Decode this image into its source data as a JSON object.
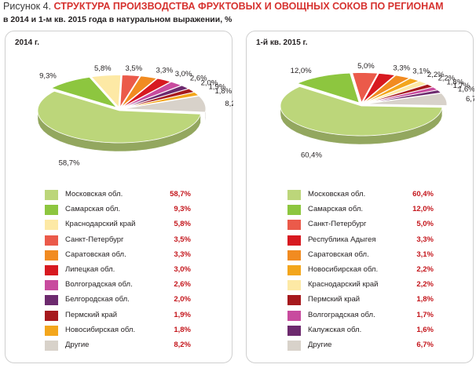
{
  "figure": {
    "lead": "Рисунок 4.",
    "title": "СТРУКТУРА ПРОИЗВОДСТВА ФРУКТОВЫХ И ОВОЩНЫХ СОКОВ ПО РЕГИОНАМ",
    "subtitle": "в 2014 и 1-м кв. 2015 года в натуральном выражении, %"
  },
  "chart_data": [
    {
      "type": "pie",
      "title": "2014 г.",
      "labels": [
        "Московская обл.",
        "Самарская обл.",
        "Краснодарский край",
        "Санкт-Петербург",
        "Саратовская обл.",
        "Липецкая обл.",
        "Волгоградская обл.",
        "Белгородская обл.",
        "Пермский край",
        "Новосибирская обл.",
        "Другие"
      ],
      "values": [
        58.7,
        9.3,
        5.8,
        3.5,
        3.3,
        3.0,
        2.6,
        2.0,
        1.9,
        1.8,
        8.2
      ],
      "value_labels": [
        "58,7%",
        "9,3%",
        "5,8%",
        "3,5%",
        "3,3%",
        "3,0%",
        "2,6%",
        "2,0%",
        "1,9%",
        "1,8%",
        "8,2%"
      ],
      "colors": [
        "#bcd67a",
        "#8dc63f",
        "#fde9a5",
        "#eb5a4a",
        "#f18b21",
        "#d71920",
        "#c84b9e",
        "#6d2a6e",
        "#a6191d",
        "#f3a61c",
        "#d8d2ca"
      ],
      "legend_position": "bottom"
    },
    {
      "type": "pie",
      "title": "1-й кв. 2015 г.",
      "labels": [
        "Московская обл.",
        "Самарская обл.",
        "Санкт-Петербург",
        "Республика Адыгея",
        "Саратовская обл.",
        "Новосибирская обл.",
        "Краснодарский край",
        "Пермский край",
        "Волгоградская обл.",
        "Калужская обл.",
        "Другие"
      ],
      "values": [
        60.4,
        12.0,
        5.0,
        3.3,
        3.1,
        2.2,
        2.2,
        1.8,
        1.7,
        1.6,
        6.7
      ],
      "value_labels": [
        "60,4%",
        "12,0%",
        "5,0%",
        "3,3%",
        "3,1%",
        "2,2%",
        "2,2%",
        "1,8%",
        "1,7%",
        "1,6%",
        "6,7%"
      ],
      "colors": [
        "#bcd67a",
        "#8dc63f",
        "#eb5a4a",
        "#d71920",
        "#f18b21",
        "#f3a61c",
        "#fde9a5",
        "#a6191d",
        "#c84b9e",
        "#6d2a6e",
        "#d8d2ca"
      ],
      "legend_position": "bottom"
    }
  ]
}
